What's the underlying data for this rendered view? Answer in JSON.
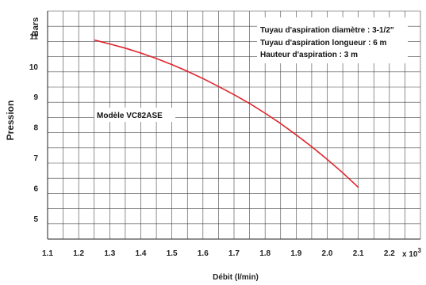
{
  "chart_data": {
    "type": "line",
    "xlabel": "Débit  (l/min)",
    "ylabel": "Pression",
    "yunit": "Bars",
    "xmultiplier": "x 10",
    "xmultiplier_exp": "3",
    "xlim": [
      1.1,
      2.3
    ],
    "ylim": [
      4.5,
      12.0
    ],
    "xticks": [
      "1.1",
      "1.2",
      "1.3",
      "1.4",
      "1.5",
      "1.6",
      "1.7",
      "1.8",
      "1.9",
      "2.0",
      "2.1",
      "2.2"
    ],
    "yticks": [
      "5",
      "6",
      "7",
      "8",
      "9",
      "10",
      "11"
    ],
    "grid": true,
    "annotations": [
      "Tuyau d'aspiration  diamètre : 3-1/2\"",
      "Tuyau d'aspiration  longueur : 6 m",
      "Hauteur d'aspiration : 3 m"
    ],
    "series": [
      {
        "name": "Modèle VC82ASE",
        "color": "#e0242c",
        "x": [
          1.25,
          1.3,
          1.35,
          1.4,
          1.45,
          1.5,
          1.55,
          1.6,
          1.65,
          1.7,
          1.75,
          1.8,
          1.85,
          1.9,
          1.95,
          2.0,
          2.05,
          2.1
        ],
        "y": [
          11.05,
          10.92,
          10.78,
          10.62,
          10.44,
          10.24,
          10.02,
          9.78,
          9.52,
          9.25,
          8.96,
          8.64,
          8.3,
          7.93,
          7.54,
          7.12,
          6.68,
          6.2
        ]
      }
    ]
  }
}
